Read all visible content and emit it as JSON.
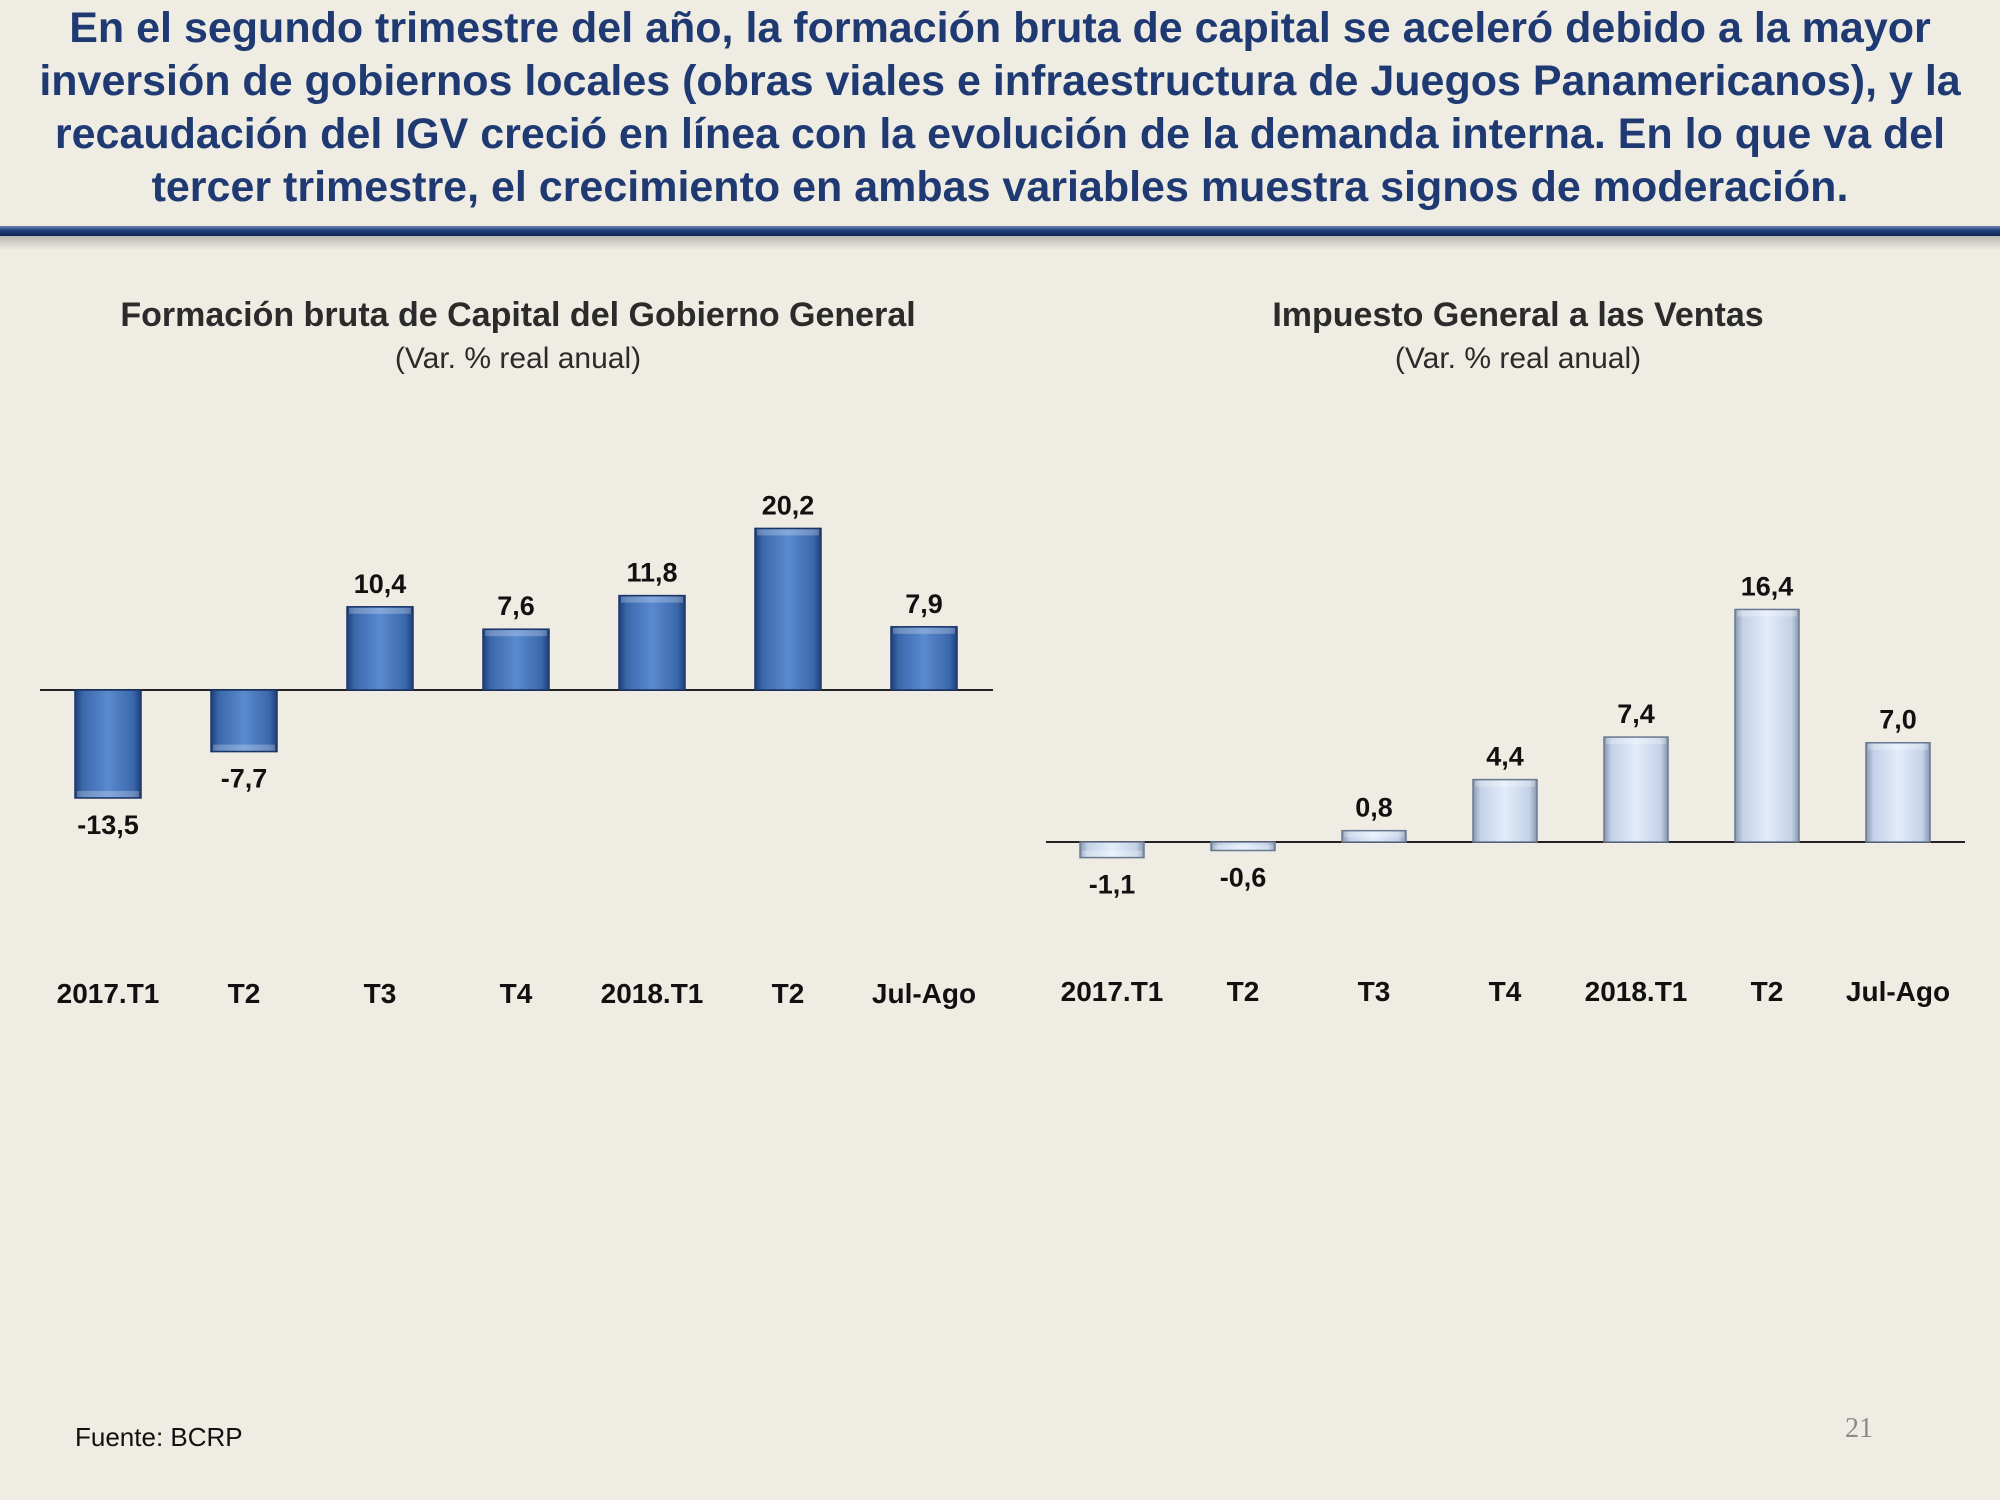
{
  "headline": "En el segundo trimestre del año, la formación bruta de capital se aceleró debido a la mayor inversión de gobiernos locales (obras viales e infraestructura de Juegos Panamericanos), y la recaudación del IGV creció en línea con la evolución de la demanda interna. En lo que va del tercer trimestre, el crecimiento en ambas variables muestra signos de moderación.",
  "source": "Fuente: BCRP",
  "page_number": "21",
  "colors": {
    "background": "#efece3",
    "headline": "#1f3a73",
    "rule": "#1f3e7a",
    "left_bars": "#4f7fc2",
    "right_bars": "#d6e4f8"
  },
  "chart_data": [
    {
      "type": "bar",
      "title": "Formación bruta de Capital del Gobierno General",
      "subtitle": "(Var. % real anual)",
      "categories": [
        "2017.T1",
        "T2",
        "T3",
        "T4",
        "2018.T1",
        "T2",
        "Jul-Ago"
      ],
      "values": [
        -13.5,
        -7.7,
        10.4,
        7.6,
        11.8,
        20.2,
        7.9
      ],
      "value_labels": [
        "-13,5",
        "-7,7",
        "10,4",
        "7,6",
        "11,8",
        "20,2",
        "7,9"
      ],
      "xlabel": "",
      "ylabel": "",
      "ylim": [
        -20,
        25
      ],
      "grid": false,
      "legend": "none",
      "bar_color": "#4f7fc2"
    },
    {
      "type": "bar",
      "title": "Impuesto General a las Ventas",
      "subtitle": "(Var. % real anual)",
      "categories": [
        "2017.T1",
        "T2",
        "T3",
        "T4",
        "2018.T1",
        "T2",
        "Jul-Ago"
      ],
      "values": [
        -1.1,
        -0.6,
        0.8,
        4.4,
        7.4,
        16.4,
        7.0
      ],
      "value_labels": [
        "-1,1",
        "-0,6",
        "0,8",
        "4,4",
        "7,4",
        "16,4",
        "7,0"
      ],
      "xlabel": "",
      "ylabel": "",
      "ylim": [
        -5,
        20
      ],
      "grid": false,
      "legend": "none",
      "bar_color": "#d6e4f8"
    }
  ]
}
